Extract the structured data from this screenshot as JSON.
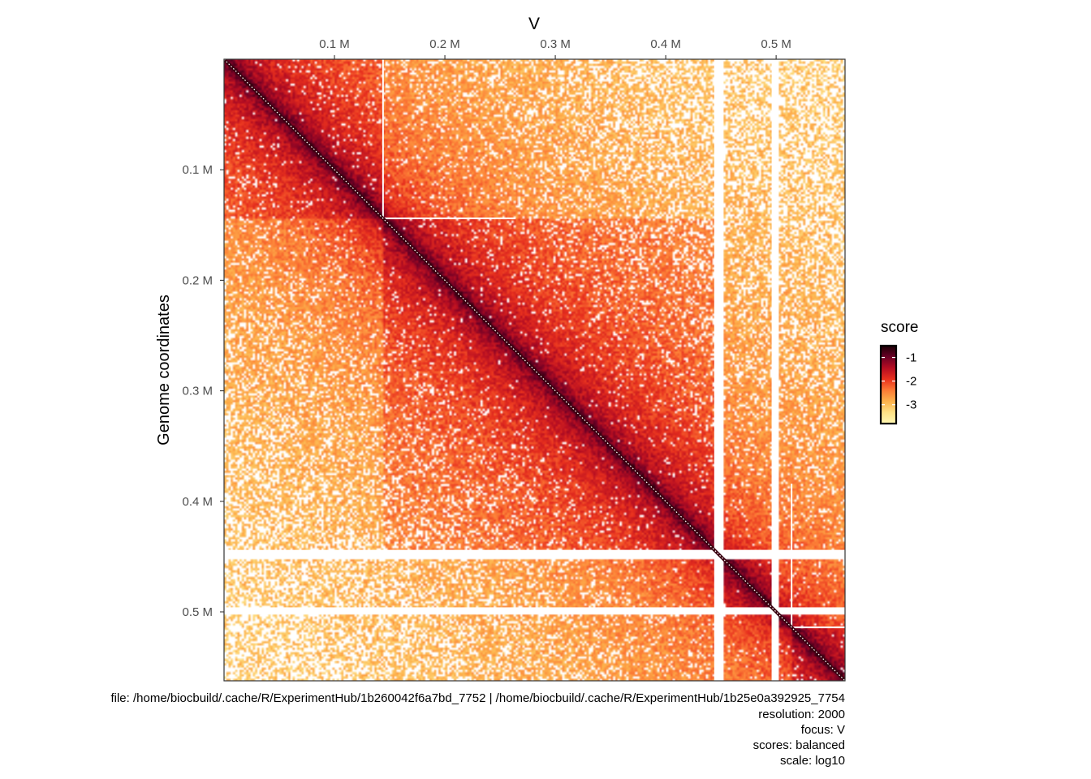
{
  "chart_data": {
    "type": "heatmap",
    "title": "V",
    "xlabel": "",
    "ylabel": "Genome coordinates",
    "xlim": [
      0,
      0.5624
    ],
    "ylim": [
      0,
      0.5624
    ],
    "coordinate_unit": "M",
    "resolution_bp": 2000,
    "x_ticks": [
      {
        "value": 0.1,
        "label": "0.1 M"
      },
      {
        "value": 0.2,
        "label": "0.2 M"
      },
      {
        "value": 0.3,
        "label": "0.3 M"
      },
      {
        "value": 0.4,
        "label": "0.4 M"
      },
      {
        "value": 0.5,
        "label": "0.5 M"
      }
    ],
    "y_ticks": [
      {
        "value": 0.1,
        "label": "0.1 M"
      },
      {
        "value": 0.2,
        "label": "0.2 M"
      },
      {
        "value": 0.3,
        "label": "0.3 M"
      },
      {
        "value": 0.4,
        "label": "0.4 M"
      },
      {
        "value": 0.5,
        "label": "0.5 M"
      }
    ],
    "masked_bins_start_M": [
      0.444,
      0.496
    ],
    "masked_bins_end_M": [
      0.452,
      0.502
    ],
    "domain_boundaries_M": [
      0.144,
      0.446,
      0.498,
      0.514
    ],
    "legend": {
      "title": "score",
      "placement": "right",
      "range": [
        -3.8,
        -0.5
      ],
      "ticks": [
        {
          "value": -1,
          "label": "-1"
        },
        {
          "value": -2,
          "label": "-2"
        },
        {
          "value": -3,
          "label": "-3"
        }
      ],
      "colors": [
        "#fff8b4",
        "#fee286",
        "#fdb24c",
        "#fc7a35",
        "#e8301e",
        "#b50d22",
        "#6a0026",
        "#1a0005"
      ]
    },
    "grid": false
  },
  "caption": {
    "file": "file: /home/biocbuild/.cache/R/ExperimentHub/1b260042f6a7bd_7752 | /home/biocbuild/.cache/R/ExperimentHub/1b25e0a392925_7754",
    "resolution": "resolution: 2000",
    "focus": "focus: V",
    "scores": "scores: balanced",
    "scale": "scale: log10"
  }
}
